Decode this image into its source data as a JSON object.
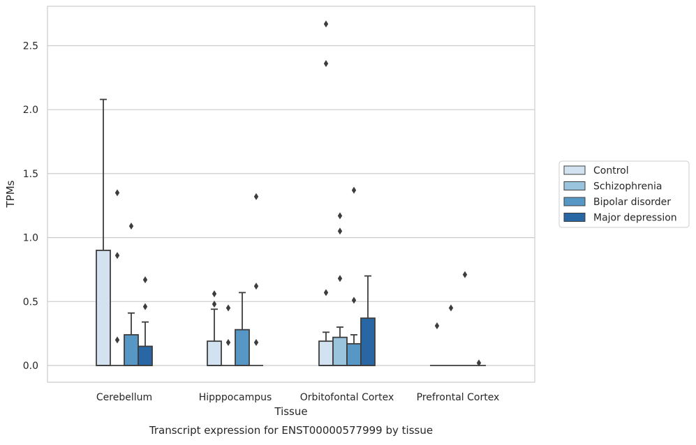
{
  "chart_data": {
    "type": "box",
    "title": "",
    "xlabel": "Tissue",
    "ylabel": "TPMs",
    "caption": "Transcript expression for ENST00000577999 by tissue",
    "categories": [
      "Cerebellum",
      "Hipppocampus",
      "Orbitofontal Cortex",
      "Prefrontal Cortex"
    ],
    "ylim": [
      -0.13,
      2.8
    ],
    "yticks": [
      0.0,
      0.5,
      1.0,
      1.5,
      2.0,
      2.5
    ],
    "ytick_labels": [
      "0.0",
      "0.5",
      "1.0",
      "1.5",
      "2.0",
      "2.5"
    ],
    "grid": "horizontal",
    "legend_position": "right",
    "series": [
      {
        "name": "Control",
        "color": "#d3e2f0",
        "boxes": [
          {
            "q1": 0.0,
            "q3": 0.9,
            "whislo": 0.0,
            "whishi": 2.08,
            "fliers": []
          },
          {
            "q1": 0.0,
            "q3": 0.19,
            "whislo": 0.0,
            "whishi": 0.44,
            "fliers": [
              0.48,
              0.56
            ]
          },
          {
            "q1": 0.0,
            "q3": 0.19,
            "whislo": 0.0,
            "whishi": 0.26,
            "fliers": [
              0.57,
              2.36,
              2.67
            ]
          },
          {
            "q1": 0.0,
            "q3": 0.0,
            "whislo": 0.0,
            "whishi": 0.0,
            "fliers": [
              0.31
            ]
          }
        ]
      },
      {
        "name": "Schizophrenia",
        "color": "#9ac4de",
        "boxes": [
          {
            "q1": 0.0,
            "q3": 0.0,
            "whislo": 0.0,
            "whishi": 0.0,
            "fliers": [
              0.2,
              0.86,
              1.35
            ]
          },
          {
            "q1": 0.0,
            "q3": 0.0,
            "whislo": 0.0,
            "whishi": 0.0,
            "fliers": [
              0.18,
              0.45
            ]
          },
          {
            "q1": 0.0,
            "q3": 0.22,
            "whislo": 0.0,
            "whishi": 0.3,
            "fliers": [
              0.68,
              1.05,
              1.17
            ]
          },
          {
            "q1": 0.0,
            "q3": 0.0,
            "whislo": 0.0,
            "whishi": 0.0,
            "fliers": [
              0.45
            ]
          }
        ]
      },
      {
        "name": "Bipolar disorder",
        "color": "#5697c6",
        "boxes": [
          {
            "q1": 0.0,
            "q3": 0.24,
            "whislo": 0.0,
            "whishi": 0.41,
            "fliers": [
              1.09
            ]
          },
          {
            "q1": 0.0,
            "q3": 0.28,
            "whislo": 0.0,
            "whishi": 0.57,
            "fliers": []
          },
          {
            "q1": 0.0,
            "q3": 0.17,
            "whislo": 0.0,
            "whishi": 0.24,
            "fliers": [
              0.51,
              1.37
            ]
          },
          {
            "q1": 0.0,
            "q3": 0.0,
            "whislo": 0.0,
            "whishi": 0.0,
            "fliers": [
              0.71
            ]
          }
        ]
      },
      {
        "name": "Major depression",
        "color": "#2866a4",
        "boxes": [
          {
            "q1": 0.0,
            "q3": 0.15,
            "whislo": 0.0,
            "whishi": 0.34,
            "fliers": [
              0.46,
              0.67
            ]
          },
          {
            "q1": 0.0,
            "q3": 0.0,
            "whislo": 0.0,
            "whishi": 0.0,
            "fliers": [
              0.18,
              0.62,
              1.32
            ]
          },
          {
            "q1": 0.0,
            "q3": 0.37,
            "whislo": 0.0,
            "whishi": 0.7,
            "fliers": []
          },
          {
            "q1": 0.0,
            "q3": 0.0,
            "whislo": 0.0,
            "whishi": 0.0,
            "fliers": [
              0.02
            ]
          }
        ]
      }
    ]
  }
}
